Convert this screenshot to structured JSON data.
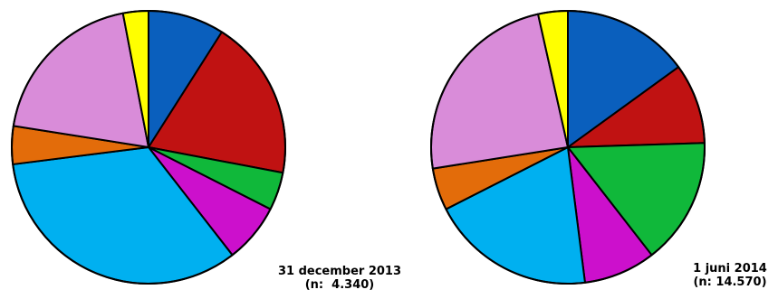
{
  "chart_data": [
    {
      "type": "pie",
      "caption_date": "31 december 2013",
      "caption_n": "(n:  4.340)",
      "slices": [
        {
          "color": "#0a5fbd",
          "value": 9.0
        },
        {
          "color": "#c01212",
          "value": 19.0
        },
        {
          "color": "#10b83a",
          "value": 4.5
        },
        {
          "color": "#cc10cc",
          "value": 7.0
        },
        {
          "color": "#00b0f0",
          "value": 33.5
        },
        {
          "color": "#e36c0a",
          "value": 4.5
        },
        {
          "color": "#d98cd9",
          "value": 19.5
        },
        {
          "color": "#ffff00",
          "value": 3.0
        }
      ]
    },
    {
      "type": "pie",
      "caption_date": "1 juni 2014",
      "caption_n": "(n: 14.570)",
      "slices": [
        {
          "color": "#0a5fbd",
          "value": 15.0
        },
        {
          "color": "#c01212",
          "value": 9.5
        },
        {
          "color": "#10b83a",
          "value": 15.0
        },
        {
          "color": "#cc10cc",
          "value": 8.5
        },
        {
          "color": "#00b0f0",
          "value": 19.5
        },
        {
          "color": "#e36c0a",
          "value": 5.0
        },
        {
          "color": "#d98cd9",
          "value": 24.0
        },
        {
          "color": "#ffff00",
          "value": 3.5
        }
      ]
    }
  ]
}
